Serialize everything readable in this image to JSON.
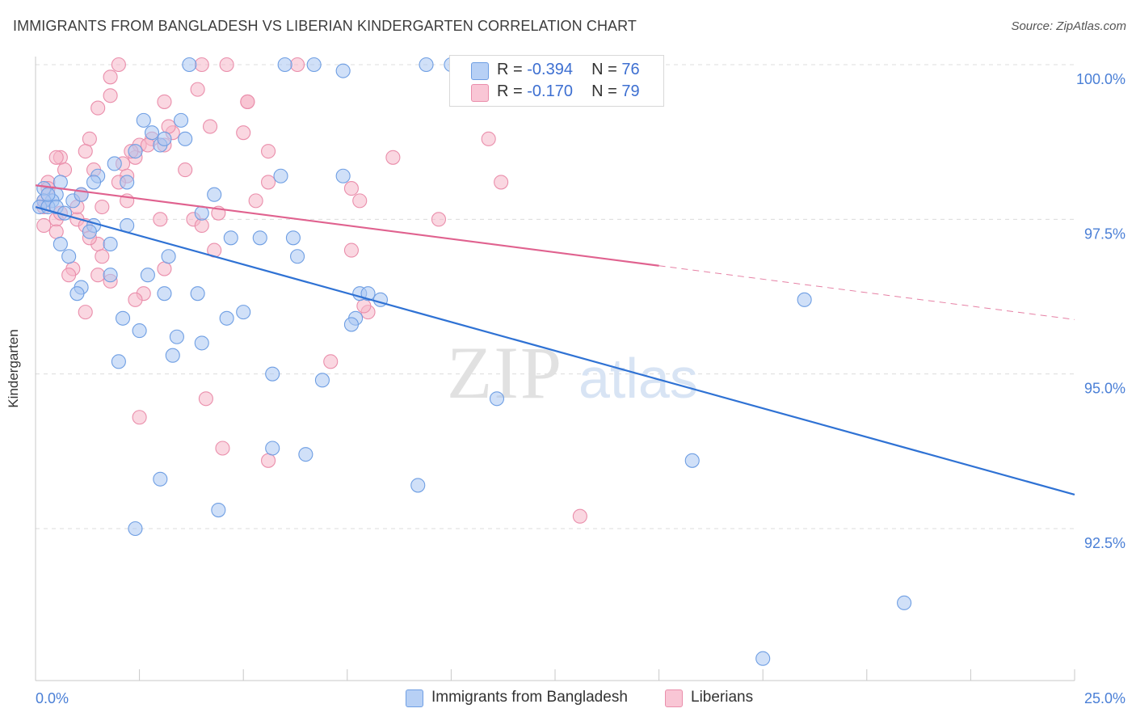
{
  "header": {
    "title": "IMMIGRANTS FROM BANGLADESH VS LIBERIAN KINDERGARTEN CORRELATION CHART",
    "source": "Source: ZipAtlas.com"
  },
  "stats": [
    {
      "r_label": "R =",
      "r_value": "-0.394",
      "n_label": "N =",
      "n_value": "76"
    },
    {
      "r_label": "R =",
      "r_value": "-0.170",
      "n_label": "N =",
      "n_value": "79"
    }
  ],
  "legend": {
    "series1": "Immigrants from Bangladesh",
    "series2": "Liberians"
  },
  "watermark": {
    "part1": "ZIP",
    "part2": "atlas"
  },
  "chart_data": {
    "type": "scatter",
    "title": "IMMIGRANTS FROM BANGLADESH VS LIBERIAN KINDERGARTEN CORRELATION CHART",
    "xlabel": "",
    "ylabel": "Kindergarten",
    "xlim": [
      0,
      25
    ],
    "ylim": [
      90.0,
      100.2
    ],
    "x_tick_labels": [
      "0.0%",
      "25.0%"
    ],
    "y_ticks": [
      92.5,
      95.0,
      97.5,
      100.0
    ],
    "y_tick_labels": [
      "92.5%",
      "95.0%",
      "97.5%",
      "100.0%"
    ],
    "colors": {
      "series1_fill": "#a9c6f2",
      "series1_stroke": "#6e9ee3",
      "series1_line": "#2f72d4",
      "series2_fill": "#f6b6c9",
      "series2_stroke": "#ea8eab",
      "series2_line": "#e0628f",
      "grid": "#dcdcdc",
      "tick_text": "#4a7fd6"
    },
    "series": [
      {
        "name": "Immigrants from Bangladesh",
        "trend": {
          "x0": 0,
          "y0": 97.7,
          "x1": 25,
          "y1": 93.05
        },
        "points": [
          [
            3.7,
            100.0
          ],
          [
            6.0,
            100.0
          ],
          [
            6.7,
            100.0
          ],
          [
            9.4,
            100.0
          ],
          [
            10.0,
            100.0
          ],
          [
            7.4,
            99.9
          ],
          [
            2.6,
            99.1
          ],
          [
            3.5,
            99.1
          ],
          [
            2.8,
            98.9
          ],
          [
            3.0,
            98.7
          ],
          [
            3.1,
            98.8
          ],
          [
            3.6,
            98.8
          ],
          [
            2.4,
            98.6
          ],
          [
            1.9,
            98.4
          ],
          [
            1.5,
            98.2
          ],
          [
            1.4,
            98.1
          ],
          [
            2.2,
            98.1
          ],
          [
            5.9,
            98.2
          ],
          [
            7.4,
            98.2
          ],
          [
            0.2,
            98.0
          ],
          [
            0.5,
            97.9
          ],
          [
            0.6,
            98.1
          ],
          [
            0.4,
            97.8
          ],
          [
            0.2,
            97.8
          ],
          [
            0.9,
            97.8
          ],
          [
            1.1,
            97.9
          ],
          [
            4.3,
            97.9
          ],
          [
            0.1,
            97.7
          ],
          [
            0.3,
            97.7
          ],
          [
            0.5,
            97.7
          ],
          [
            1.4,
            97.4
          ],
          [
            2.2,
            97.4
          ],
          [
            4.0,
            97.6
          ],
          [
            1.3,
            97.3
          ],
          [
            4.7,
            97.2
          ],
          [
            5.4,
            97.2
          ],
          [
            6.2,
            97.2
          ],
          [
            0.6,
            97.1
          ],
          [
            1.8,
            97.1
          ],
          [
            0.8,
            96.9
          ],
          [
            3.2,
            96.9
          ],
          [
            6.3,
            96.9
          ],
          [
            1.8,
            96.6
          ],
          [
            2.7,
            96.6
          ],
          [
            1.1,
            96.4
          ],
          [
            1.0,
            96.3
          ],
          [
            3.1,
            96.3
          ],
          [
            3.9,
            96.3
          ],
          [
            7.8,
            96.3
          ],
          [
            8.0,
            96.3
          ],
          [
            8.3,
            96.2
          ],
          [
            18.5,
            96.2
          ],
          [
            5.0,
            96.0
          ],
          [
            4.6,
            95.9
          ],
          [
            7.7,
            95.9
          ],
          [
            7.6,
            95.8
          ],
          [
            2.1,
            95.9
          ],
          [
            2.5,
            95.7
          ],
          [
            3.4,
            95.6
          ],
          [
            4.0,
            95.5
          ],
          [
            3.3,
            95.3
          ],
          [
            2.0,
            95.2
          ],
          [
            5.7,
            95.0
          ],
          [
            6.9,
            94.9
          ],
          [
            11.1,
            94.6
          ],
          [
            5.7,
            93.8
          ],
          [
            6.5,
            93.7
          ],
          [
            15.8,
            93.6
          ],
          [
            3.0,
            93.3
          ],
          [
            9.2,
            93.2
          ],
          [
            4.4,
            92.8
          ],
          [
            2.4,
            92.5
          ],
          [
            20.9,
            91.3
          ],
          [
            17.5,
            90.4
          ],
          [
            0.3,
            97.9
          ],
          [
            0.7,
            97.6
          ]
        ]
      },
      {
        "name": "Liberians",
        "trend": {
          "x0": 0,
          "y0": 98.05,
          "x1": 15.0,
          "y1": 96.75
        },
        "trend_dashed": {
          "x0": 15.0,
          "y0": 96.75,
          "x1": 25.0,
          "y1": 95.88
        },
        "points": [
          [
            2.0,
            100.0
          ],
          [
            4.0,
            100.0
          ],
          [
            4.6,
            100.0
          ],
          [
            6.3,
            100.0
          ],
          [
            1.8,
            99.8
          ],
          [
            3.9,
            99.6
          ],
          [
            1.8,
            99.5
          ],
          [
            3.1,
            99.4
          ],
          [
            5.1,
            99.4
          ],
          [
            5.1,
            99.4
          ],
          [
            1.5,
            99.3
          ],
          [
            4.2,
            99.0
          ],
          [
            3.3,
            98.9
          ],
          [
            5.0,
            98.9
          ],
          [
            2.8,
            98.8
          ],
          [
            1.3,
            98.8
          ],
          [
            10.9,
            98.8
          ],
          [
            2.5,
            98.7
          ],
          [
            2.7,
            98.7
          ],
          [
            3.1,
            98.7
          ],
          [
            0.6,
            98.5
          ],
          [
            1.2,
            98.6
          ],
          [
            5.6,
            98.6
          ],
          [
            8.6,
            98.5
          ],
          [
            2.1,
            98.4
          ],
          [
            2.4,
            98.5
          ],
          [
            0.7,
            98.3
          ],
          [
            0.5,
            98.5
          ],
          [
            1.4,
            98.3
          ],
          [
            3.6,
            98.3
          ],
          [
            0.3,
            98.1
          ],
          [
            2.2,
            98.2
          ],
          [
            5.6,
            98.1
          ],
          [
            11.2,
            98.1
          ],
          [
            7.6,
            98.0
          ],
          [
            2.0,
            98.1
          ],
          [
            0.3,
            98.0
          ],
          [
            1.1,
            97.9
          ],
          [
            5.3,
            97.8
          ],
          [
            7.8,
            97.8
          ],
          [
            2.2,
            97.8
          ],
          [
            0.2,
            97.8
          ],
          [
            1.6,
            97.7
          ],
          [
            4.4,
            97.6
          ],
          [
            0.5,
            97.5
          ],
          [
            1.0,
            97.5
          ],
          [
            3.0,
            97.5
          ],
          [
            3.8,
            97.5
          ],
          [
            4.0,
            97.4
          ],
          [
            9.7,
            97.5
          ],
          [
            0.2,
            97.4
          ],
          [
            1.2,
            97.4
          ],
          [
            0.5,
            97.3
          ],
          [
            1.5,
            97.1
          ],
          [
            4.3,
            97.0
          ],
          [
            7.6,
            97.0
          ],
          [
            1.6,
            96.9
          ],
          [
            3.1,
            96.7
          ],
          [
            0.9,
            96.7
          ],
          [
            0.8,
            96.6
          ],
          [
            1.8,
            96.5
          ],
          [
            1.5,
            96.6
          ],
          [
            2.6,
            96.3
          ],
          [
            2.4,
            96.2
          ],
          [
            8.0,
            96.0
          ],
          [
            7.9,
            96.1
          ],
          [
            7.1,
            95.2
          ],
          [
            4.1,
            94.6
          ],
          [
            2.5,
            94.3
          ],
          [
            4.5,
            93.8
          ],
          [
            5.6,
            93.6
          ],
          [
            13.1,
            92.7
          ],
          [
            0.2,
            97.7
          ],
          [
            0.6,
            97.6
          ],
          [
            1.0,
            97.7
          ],
          [
            1.2,
            96.0
          ],
          [
            1.3,
            97.2
          ],
          [
            2.3,
            98.6
          ],
          [
            3.2,
            99.0
          ]
        ]
      }
    ]
  }
}
